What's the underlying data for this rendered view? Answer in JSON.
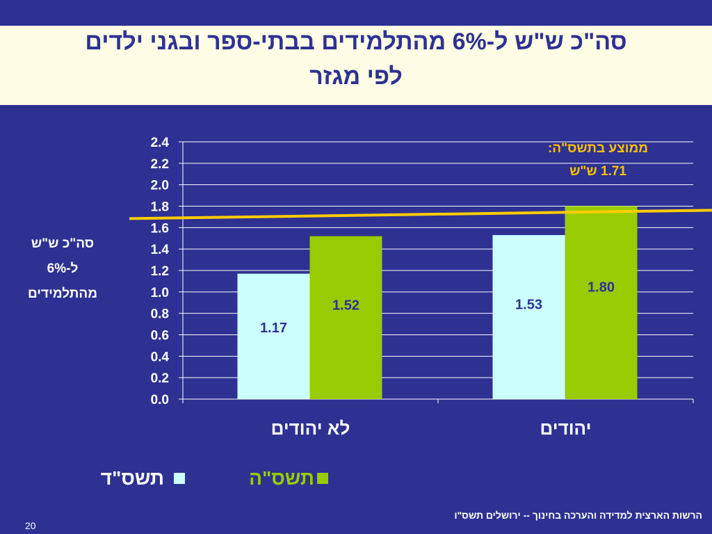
{
  "slide": {
    "title_line1": "סה\"כ ש\"ש ל-6% מהתלמידים בבתי-ספר ובגני ילדים",
    "title_line2": "לפי מגזר",
    "ylabel_lines": [
      "סה\"כ ש\"ש",
      "ל-6%",
      "מהתלמידים"
    ],
    "annotation_line1": "ממוצע בתשס\"ה:",
    "annotation_line2": "1.71 ש\"ש",
    "footer_source": "הרשות הארצית למדידה והערכה בחינוך  -- ירושלים תשס\"ו",
    "page_number": "20"
  },
  "legend": {
    "item1_label": "תשס\"ה",
    "item1_color": "#99cc00",
    "item2_label": "תשס\"ד",
    "item2_color": "#ccffff"
  },
  "chart_data": {
    "type": "bar",
    "categories": [
      "לא יהודים",
      "יהודים"
    ],
    "series": [
      {
        "name": "תשס\"ד",
        "values": [
          1.17,
          1.53
        ],
        "color": "#ccffff"
      },
      {
        "name": "תשס\"ה",
        "values": [
          1.52,
          1.8
        ],
        "color": "#99cc00"
      }
    ],
    "data_labels": [
      [
        "1.17",
        "1.53"
      ],
      [
        "1.52",
        "1.80"
      ]
    ],
    "ylim": [
      0,
      2.4
    ],
    "yticks": [
      "0.0",
      "0.2",
      "0.4",
      "0.6",
      "0.8",
      "1.0",
      "1.2",
      "1.4",
      "1.6",
      "1.8",
      "2.0",
      "2.2",
      "2.4"
    ],
    "reference_line": {
      "value": 1.71,
      "color": "#ffcc00"
    },
    "grid": true,
    "plot_background": "#2e3192",
    "gridline_color": "#ffffff",
    "text_color": "#ffffff",
    "data_label_color": "#2e3192"
  }
}
